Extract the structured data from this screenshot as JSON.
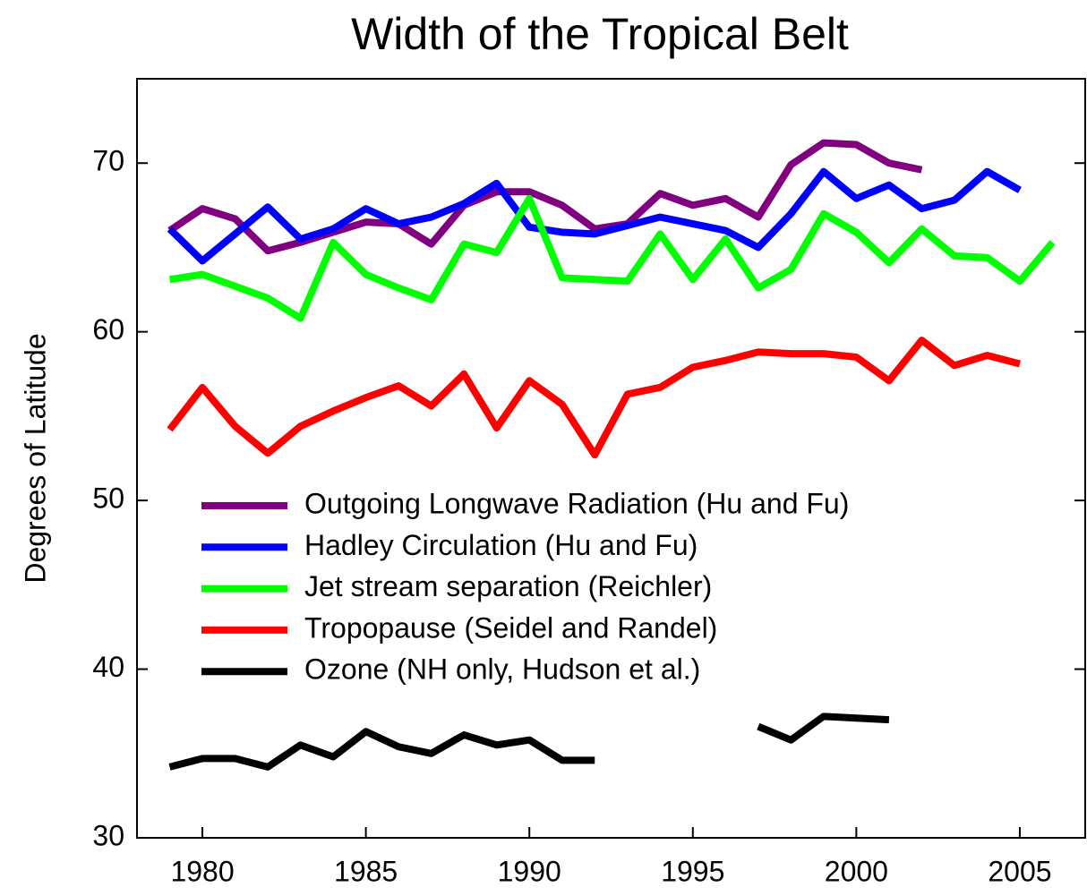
{
  "chart_data": {
    "type": "line",
    "title": "Width of the Tropical Belt",
    "y_label": "Degrees of Latitude",
    "x": [
      1979,
      1980,
      1981,
      1982,
      1983,
      1984,
      1985,
      1986,
      1987,
      1988,
      1989,
      1990,
      1991,
      1992,
      1993,
      1994,
      1995,
      1996,
      1997,
      1998,
      1999,
      2000,
      2001,
      2002,
      2003,
      2004,
      2005,
      2006
    ],
    "series": [
      {
        "name": "Outgoing Longwave Radiation (Hu and Fu)",
        "color": "#800080",
        "values": [
          66.0,
          67.3,
          66.7,
          64.8,
          65.3,
          65.9,
          66.5,
          66.4,
          65.2,
          67.5,
          68.3,
          68.3,
          67.5,
          66.1,
          66.4,
          68.2,
          67.5,
          67.9,
          66.8,
          69.9,
          71.2,
          71.1,
          70.0,
          69.6,
          null,
          null,
          null,
          null
        ]
      },
      {
        "name": "Hadley Circulation (Hu and Fu)",
        "color": "#0000ff",
        "values": [
          66.1,
          64.2,
          65.8,
          67.4,
          65.5,
          66.1,
          67.3,
          66.4,
          66.8,
          67.6,
          68.8,
          66.2,
          65.9,
          65.8,
          66.3,
          66.8,
          66.4,
          66.0,
          65.0,
          67.0,
          69.5,
          67.9,
          68.7,
          67.3,
          67.8,
          69.5,
          68.4,
          null
        ]
      },
      {
        "name": "Jet stream separation (Reichler)",
        "color": "#00ff00",
        "values": [
          63.1,
          63.4,
          62.7,
          62.0,
          60.8,
          65.3,
          63.4,
          62.6,
          61.9,
          65.2,
          64.7,
          67.9,
          63.2,
          63.1,
          63.0,
          65.8,
          63.1,
          65.5,
          62.6,
          63.7,
          67.0,
          65.9,
          64.1,
          66.1,
          64.5,
          64.4,
          63.0,
          65.3
        ]
      },
      {
        "name": "Tropopause (Seidel and Randel)",
        "color": "#ff0000",
        "values": [
          54.2,
          56.7,
          54.4,
          52.8,
          54.4,
          55.3,
          56.1,
          56.8,
          55.6,
          57.5,
          54.3,
          57.1,
          55.7,
          52.7,
          56.3,
          56.7,
          57.9,
          58.3,
          58.8,
          58.7,
          58.7,
          58.5,
          57.1,
          59.5,
          58.0,
          58.6,
          58.1,
          null
        ]
      },
      {
        "name": "Ozone (NH only, Hudson et al.)",
        "color": "#000000",
        "values": [
          34.2,
          34.7,
          34.7,
          34.2,
          35.5,
          34.8,
          36.3,
          35.4,
          35.0,
          36.1,
          35.5,
          35.8,
          34.6,
          34.6,
          null,
          null,
          null,
          null,
          36.6,
          35.8,
          37.2,
          37.1,
          37.0,
          null,
          null,
          null,
          null,
          null
        ]
      }
    ],
    "xlim": [
      1978,
      2007
    ],
    "xticks": [
      1980,
      1985,
      1990,
      1995,
      2000,
      2005
    ],
    "ylim": [
      30,
      75
    ],
    "yticks": [
      30,
      40,
      50,
      60,
      70
    ],
    "legend": "lower left"
  }
}
